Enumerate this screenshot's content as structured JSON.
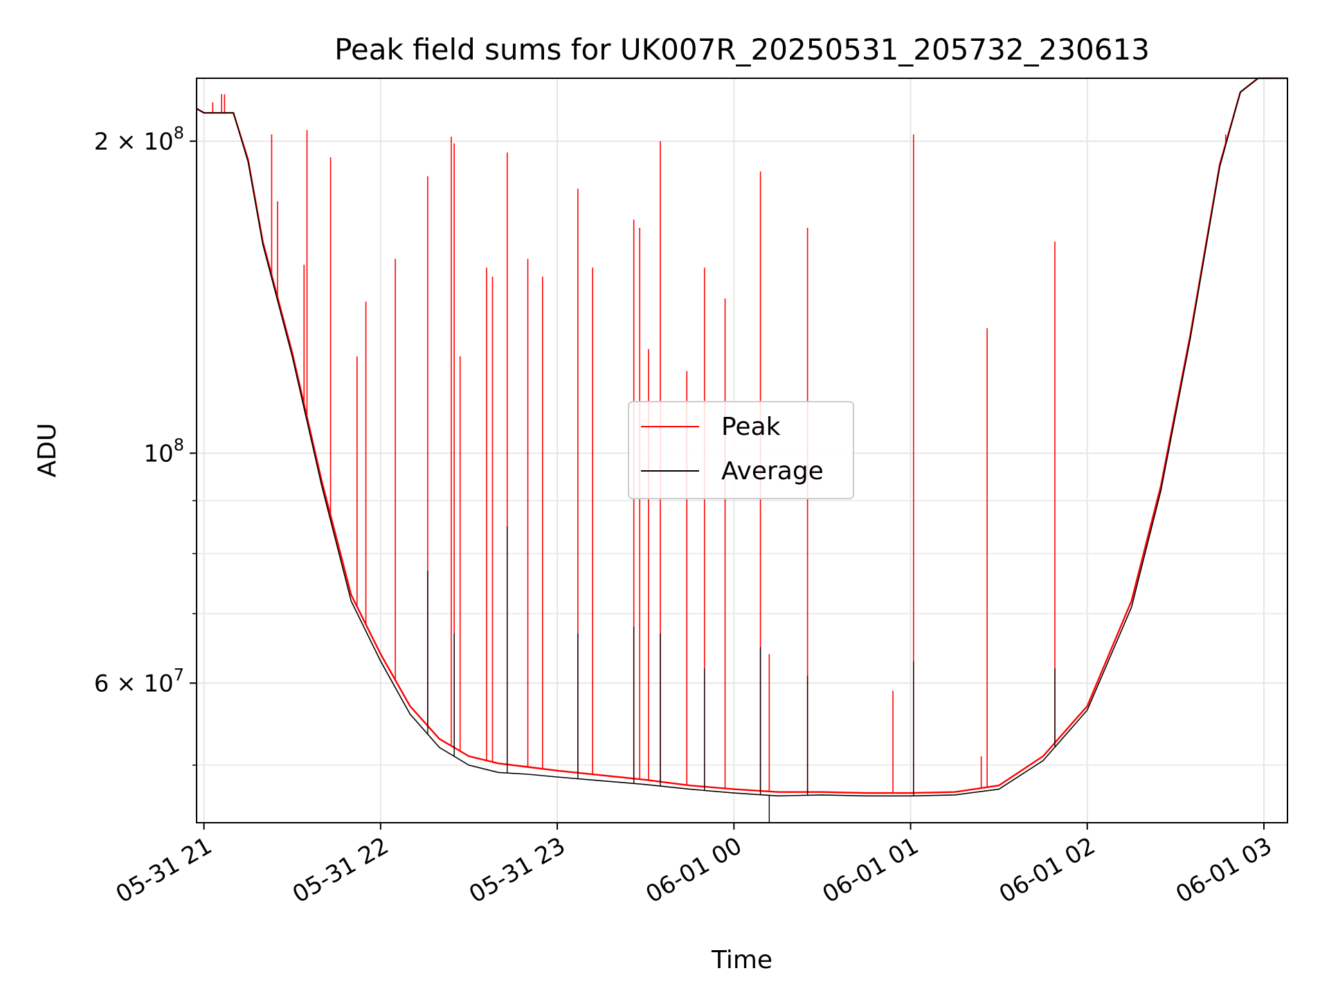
{
  "chart_data": {
    "type": "line",
    "title": "Peak field sums for UK007R_20250531_205732_230613",
    "xlabel": "Time",
    "ylabel": "ADU",
    "y_scale": "log",
    "ylim": [
      44000000,
      230000000
    ],
    "xlim": [
      "2025-05-31T20:57:30",
      "2025-06-01T03:08:00"
    ],
    "x_ticks": [
      {
        "value": "2025-05-31T21:00:00",
        "label": "05-31 21"
      },
      {
        "value": "2025-05-31T22:00:00",
        "label": "05-31 22"
      },
      {
        "value": "2025-05-31T23:00:00",
        "label": "05-31 23"
      },
      {
        "value": "2025-06-01T00:00:00",
        "label": "06-01 00"
      },
      {
        "value": "2025-06-01T01:00:00",
        "label": "06-01 01"
      },
      {
        "value": "2025-06-01T02:00:00",
        "label": "06-01 02"
      },
      {
        "value": "2025-06-01T03:00:00",
        "label": "06-01 03"
      }
    ],
    "y_major_ticks": [
      {
        "value": 200000000,
        "base": "2 × 10",
        "exp": "8"
      },
      {
        "value": 100000000,
        "base": "10",
        "exp": "8"
      },
      {
        "value": 60000000,
        "base": "6 × 10",
        "exp": "7"
      }
    ],
    "y_minor_ticks": [
      50000000,
      70000000,
      80000000,
      90000000
    ],
    "grid": true,
    "legend": {
      "position": "center"
    },
    "series": [
      {
        "name": "Peak",
        "color": "#ff0000",
        "baseline": [
          [
            "2025-05-31T20:57:30",
            215000000
          ],
          [
            "2025-05-31T21:00:00",
            213000000
          ],
          [
            "2025-05-31T21:10:00",
            213000000
          ],
          [
            "2025-05-31T21:15:00",
            192000000
          ],
          [
            "2025-05-31T21:20:00",
            160000000
          ],
          [
            "2025-05-31T21:30:00",
            125000000
          ],
          [
            "2025-05-31T21:40:00",
            94000000
          ],
          [
            "2025-05-31T21:50:00",
            73000000
          ],
          [
            "2025-05-31T22:00:00",
            64000000
          ],
          [
            "2025-05-31T22:10:00",
            57000000
          ],
          [
            "2025-05-31T22:20:00",
            53000000
          ],
          [
            "2025-05-31T22:30:00",
            51000000
          ],
          [
            "2025-05-31T22:40:00",
            50200000
          ],
          [
            "2025-05-31T22:50:00",
            49800000
          ],
          [
            "2025-05-31T23:00:00",
            49400000
          ],
          [
            "2025-05-31T23:15:00",
            48900000
          ],
          [
            "2025-05-31T23:30:00",
            48400000
          ],
          [
            "2025-05-31T23:45:00",
            47800000
          ],
          [
            "2025-06-01T00:00:00",
            47400000
          ],
          [
            "2025-06-01T00:15:00",
            47100000
          ],
          [
            "2025-06-01T00:30:00",
            47100000
          ],
          [
            "2025-06-01T00:45:00",
            47000000
          ],
          [
            "2025-06-01T01:00:00",
            47000000
          ],
          [
            "2025-06-01T01:15:00",
            47100000
          ],
          [
            "2025-06-01T01:30:00",
            47800000
          ],
          [
            "2025-06-01T01:45:00",
            51000000
          ],
          [
            "2025-06-01T02:00:00",
            57000000
          ],
          [
            "2025-06-01T02:15:00",
            72000000
          ],
          [
            "2025-06-01T02:25:00",
            93000000
          ],
          [
            "2025-06-01T02:35:00",
            130000000
          ],
          [
            "2025-06-01T02:45:00",
            190000000
          ],
          [
            "2025-06-01T02:52:00",
            223000000
          ],
          [
            "2025-06-01T02:58:00",
            230000000
          ],
          [
            "2025-06-01T03:08:00",
            230000000
          ]
        ],
        "spikes": [
          [
            "2025-05-31T21:03:00",
            218000000
          ],
          [
            "2025-05-31T21:06:00",
            222000000
          ],
          [
            "2025-05-31T21:07:00",
            222000000
          ],
          [
            "2025-05-31T21:23:00",
            203000000
          ],
          [
            "2025-05-31T21:25:00",
            175000000
          ],
          [
            "2025-05-31T21:34:00",
            152000000
          ],
          [
            "2025-05-31T21:35:00",
            205000000
          ],
          [
            "2025-05-31T21:43:00",
            193000000
          ],
          [
            "2025-05-31T21:52:00",
            124000000
          ],
          [
            "2025-05-31T21:55:00",
            140000000
          ],
          [
            "2025-05-31T22:05:00",
            154000000
          ],
          [
            "2025-05-31T22:16:00",
            185000000
          ],
          [
            "2025-05-31T22:24:00",
            202000000
          ],
          [
            "2025-05-31T22:25:00",
            199000000
          ],
          [
            "2025-05-31T22:27:00",
            124000000
          ],
          [
            "2025-05-31T22:36:00",
            151000000
          ],
          [
            "2025-05-31T22:38:00",
            148000000
          ],
          [
            "2025-05-31T22:43:00",
            195000000
          ],
          [
            "2025-05-31T22:50:00",
            154000000
          ],
          [
            "2025-05-31T22:55:00",
            148000000
          ],
          [
            "2025-05-31T23:07:00",
            180000000
          ],
          [
            "2025-05-31T23:12:00",
            151000000
          ],
          [
            "2025-05-31T23:26:00",
            168000000
          ],
          [
            "2025-05-31T23:28:00",
            165000000
          ],
          [
            "2025-05-31T23:31:00",
            126000000
          ],
          [
            "2025-05-31T23:35:00",
            200000000
          ],
          [
            "2025-05-31T23:44:00",
            120000000
          ],
          [
            "2025-05-31T23:50:00",
            151000000
          ],
          [
            "2025-05-31T23:57:00",
            141000000
          ],
          [
            "2025-06-01T00:09:00",
            187000000
          ],
          [
            "2025-06-01T00:12:00",
            64000000
          ],
          [
            "2025-06-01T00:25:00",
            165000000
          ],
          [
            "2025-06-01T00:54:00",
            59000000
          ],
          [
            "2025-06-01T01:01:00",
            203000000
          ],
          [
            "2025-06-01T01:24:00",
            51000000
          ],
          [
            "2025-06-01T01:26:00",
            132000000
          ],
          [
            "2025-06-01T01:49:00",
            160000000
          ],
          [
            "2025-06-01T02:47:00",
            203000000
          ]
        ]
      },
      {
        "name": "Average",
        "color": "#000000",
        "baseline": [
          [
            "2025-05-31T20:57:30",
            215000000
          ],
          [
            "2025-05-31T21:00:00",
            213000000
          ],
          [
            "2025-05-31T21:10:00",
            213000000
          ],
          [
            "2025-05-31T21:15:00",
            191000000
          ],
          [
            "2025-05-31T21:20:00",
            159000000
          ],
          [
            "2025-05-31T21:30:00",
            124000000
          ],
          [
            "2025-05-31T21:40:00",
            93000000
          ],
          [
            "2025-05-31T21:50:00",
            72000000
          ],
          [
            "2025-05-31T22:00:00",
            63000000
          ],
          [
            "2025-05-31T22:10:00",
            56000000
          ],
          [
            "2025-05-31T22:20:00",
            52000000
          ],
          [
            "2025-05-31T22:30:00",
            50000000
          ],
          [
            "2025-05-31T22:40:00",
            49200000
          ],
          [
            "2025-05-31T22:50:00",
            49000000
          ],
          [
            "2025-05-31T23:00:00",
            48700000
          ],
          [
            "2025-05-31T23:15:00",
            48300000
          ],
          [
            "2025-05-31T23:30:00",
            47900000
          ],
          [
            "2025-05-31T23:45:00",
            47400000
          ],
          [
            "2025-06-01T00:00:00",
            47000000
          ],
          [
            "2025-06-01T00:15:00",
            46700000
          ],
          [
            "2025-06-01T00:30:00",
            46800000
          ],
          [
            "2025-06-01T00:45:00",
            46700000
          ],
          [
            "2025-06-01T01:00:00",
            46700000
          ],
          [
            "2025-06-01T01:15:00",
            46800000
          ],
          [
            "2025-06-01T01:30:00",
            47400000
          ],
          [
            "2025-06-01T01:45:00",
            50500000
          ],
          [
            "2025-06-01T02:00:00",
            56500000
          ],
          [
            "2025-06-01T02:15:00",
            71000000
          ],
          [
            "2025-06-01T02:25:00",
            92000000
          ],
          [
            "2025-06-01T02:35:00",
            129000000
          ],
          [
            "2025-06-01T02:45:00",
            189000000
          ],
          [
            "2025-06-01T02:52:00",
            223000000
          ],
          [
            "2025-06-01T02:58:00",
            230000000
          ],
          [
            "2025-06-01T03:08:00",
            230000000
          ]
        ],
        "spikes": [
          [
            "2025-05-31T22:16:00",
            77000000
          ],
          [
            "2025-05-31T22:25:00",
            67000000
          ],
          [
            "2025-05-31T22:43:00",
            85000000
          ],
          [
            "2025-05-31T23:07:00",
            67000000
          ],
          [
            "2025-05-31T23:26:00",
            68000000
          ],
          [
            "2025-05-31T23:35:00",
            67000000
          ],
          [
            "2025-05-31T23:50:00",
            62000000
          ],
          [
            "2025-06-01T00:09:00",
            65000000
          ],
          [
            "2025-06-01T00:25:00",
            61000000
          ],
          [
            "2025-06-01T00:12:00",
            44000000
          ],
          [
            "2025-06-01T01:01:00",
            63000000
          ],
          [
            "2025-06-01T01:49:00",
            62000000
          ]
        ]
      }
    ]
  }
}
